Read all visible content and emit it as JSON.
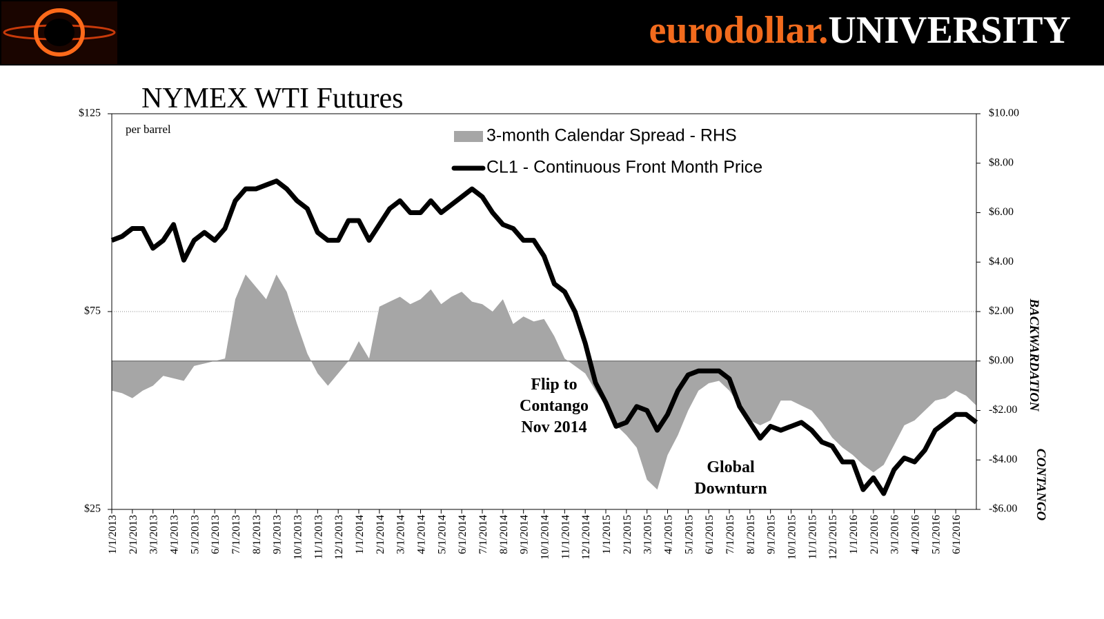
{
  "header": {
    "brand_a": "eurodollar.",
    "brand_b": "UNIVERSITY"
  },
  "chart_data": {
    "type": "line",
    "title": "NYMEX WTI Futures",
    "subtitle": "per barrel",
    "categories": [
      "1/1/2013",
      null,
      "2/1/2013",
      null,
      "3/1/2013",
      null,
      "4/1/2013",
      null,
      "5/1/2013",
      null,
      "6/1/2013",
      null,
      "7/1/2013",
      null,
      "8/1/2013",
      null,
      "9/1/2013",
      null,
      "10/1/2013",
      null,
      "11/1/2013",
      null,
      "12/1/2013",
      null,
      "1/1/2014",
      null,
      "2/1/2014",
      null,
      "3/1/2014",
      null,
      "4/1/2014",
      null,
      "5/1/2014",
      null,
      "6/1/2014",
      null,
      "7/1/2014",
      null,
      "8/1/2014",
      null,
      "9/1/2014",
      null,
      "10/1/2014",
      null,
      "11/1/2014",
      null,
      "12/1/2014",
      null,
      "1/1/2015",
      null,
      "2/1/2015",
      null,
      "3/1/2015",
      null,
      "4/1/2015",
      null,
      "5/1/2015",
      null,
      "6/1/2015",
      null,
      "7/1/2015",
      null,
      "8/1/2015",
      null,
      "9/1/2015",
      null,
      "10/1/2015",
      null,
      "11/1/2015",
      null,
      "12/1/2015",
      null,
      "1/1/2016",
      null,
      "2/1/2016",
      null,
      "3/1/2016",
      null,
      "4/1/2016",
      null,
      "5/1/2016",
      null,
      "6/1/2016",
      null,
      null
    ],
    "series": [
      {
        "name": "3-month Calendar Spread - RHS",
        "type": "area",
        "axis": "y2",
        "color": "#a6a6a6",
        "values": [
          -1.2,
          -1.3,
          -1.5,
          -1.2,
          -1.0,
          -0.6,
          -0.7,
          -0.8,
          -0.2,
          -0.1,
          0,
          0.1,
          2.5,
          3.5,
          3.0,
          2.5,
          3.5,
          2.8,
          1.5,
          0.3,
          -0.5,
          -1.0,
          -0.5,
          0,
          0.8,
          0.1,
          2.2,
          2.4,
          2.6,
          2.3,
          2.5,
          2.9,
          2.3,
          2.6,
          2.8,
          2.4,
          2.3,
          2.0,
          2.5,
          1.5,
          1.8,
          1.6,
          1.7,
          1.0,
          0.1,
          -0.2,
          -0.5,
          -1.2,
          -1.8,
          -2.6,
          -3.0,
          -3.5,
          -4.8,
          -5.2,
          -3.8,
          -3.0,
          -2.0,
          -1.2,
          -0.9,
          -0.8,
          -1.2,
          -1.8,
          -2.4,
          -2.6,
          -2.4,
          -1.6,
          -1.6,
          -1.8,
          -2.0,
          -2.5,
          -3.1,
          -3.5,
          -3.8,
          -4.2,
          -4.5,
          -4.2,
          -3.4,
          -2.6,
          -2.4,
          -2.0,
          -1.6,
          -1.5,
          -1.2,
          -1.4,
          -1.8
        ]
      },
      {
        "name": "CL1 - Continuous Front Month Price",
        "type": "line",
        "axis": "y",
        "color": "#000000",
        "values": [
          93,
          94,
          96,
          96,
          91,
          93,
          97,
          88,
          93,
          95,
          93,
          96,
          103,
          106,
          106,
          107,
          108,
          106,
          103,
          101,
          95,
          93,
          93,
          98,
          98,
          93,
          97,
          101,
          103,
          100,
          100,
          103,
          100,
          102,
          104,
          106,
          104,
          100,
          97,
          96,
          93,
          93,
          89,
          82,
          80,
          75,
          67,
          57,
          52,
          46,
          47,
          51,
          50,
          45,
          49,
          55,
          59,
          60,
          60,
          60,
          58,
          51,
          47,
          43,
          46,
          45,
          46,
          47,
          45,
          42,
          41,
          37,
          37,
          30,
          33,
          29,
          35,
          38,
          37,
          40,
          45,
          47,
          49,
          49,
          47
        ]
      }
    ],
    "ylim": [
      25,
      125
    ],
    "yticks": [
      {
        "value": 25,
        "label": "$25"
      },
      {
        "value": 75,
        "label": "$75"
      },
      {
        "value": 125,
        "label": "$125"
      }
    ],
    "y2lim": [
      -6,
      10
    ],
    "y2ticks": [
      {
        "value": -6,
        "label": "-$6.00"
      },
      {
        "value": -4,
        "label": "-$4.00"
      },
      {
        "value": -2,
        "label": "-$2.00"
      },
      {
        "value": 0,
        "label": "$0.00"
      },
      {
        "value": 2,
        "label": "$2.00"
      },
      {
        "value": 4,
        "label": "$4.00"
      },
      {
        "value": 6,
        "label": "$6.00"
      },
      {
        "value": 8,
        "label": "$8.00"
      },
      {
        "value": 10,
        "label": "$10.00"
      }
    ],
    "y2_labels": [
      "BACKWARDATION",
      "CONTANGO"
    ],
    "annotations": [
      [
        "Flip to",
        "Contango",
        "Nov 2014"
      ],
      [
        "Global",
        "Downturn"
      ]
    ],
    "legend": "top"
  }
}
